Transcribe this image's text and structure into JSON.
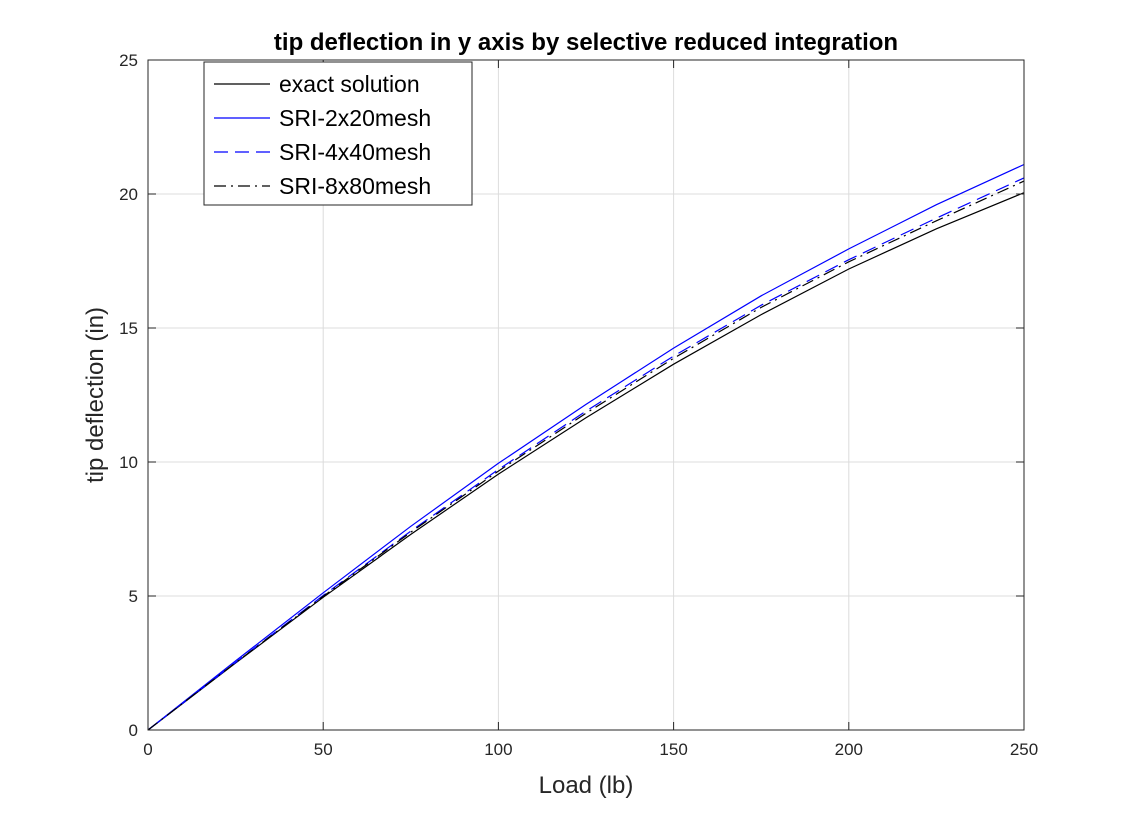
{
  "chart_data": {
    "type": "line",
    "title": "tip deflection in y axis by selective reduced integration",
    "xlabel": "Load (lb)",
    "ylabel": "tip deflection (in)",
    "xlim": [
      0,
      250
    ],
    "ylim": [
      0,
      25
    ],
    "xticks": [
      0,
      50,
      100,
      150,
      200,
      250
    ],
    "yticks": [
      0,
      5,
      10,
      15,
      20,
      25
    ],
    "grid": true,
    "legend_position": "top-left",
    "x": [
      0,
      25,
      50,
      75,
      100,
      125,
      150,
      175,
      200,
      225,
      250
    ],
    "series": [
      {
        "name": "exact solution",
        "color": "#000000",
        "dash": "solid",
        "values": [
          0,
          2.5,
          4.95,
          7.3,
          9.55,
          11.65,
          13.65,
          15.5,
          17.2,
          18.7,
          20.05
        ]
      },
      {
        "name": "SRI-2x20mesh",
        "color": "#0000ff",
        "dash": "solid",
        "values": [
          0,
          2.58,
          5.12,
          7.6,
          9.95,
          12.15,
          14.25,
          16.2,
          17.95,
          19.6,
          21.1
        ]
      },
      {
        "name": "SRI-4x40mesh",
        "color": "#0000ff",
        "dash": "dashed",
        "values": [
          0,
          2.52,
          5.02,
          7.42,
          9.72,
          11.9,
          13.95,
          15.85,
          17.55,
          19.1,
          20.6
        ]
      },
      {
        "name": "SRI-8x80mesh",
        "color": "#000000",
        "dash": "dashdot",
        "values": [
          0,
          2.51,
          4.99,
          7.38,
          9.66,
          11.82,
          13.87,
          15.77,
          17.47,
          19.0,
          20.48
        ]
      }
    ]
  }
}
